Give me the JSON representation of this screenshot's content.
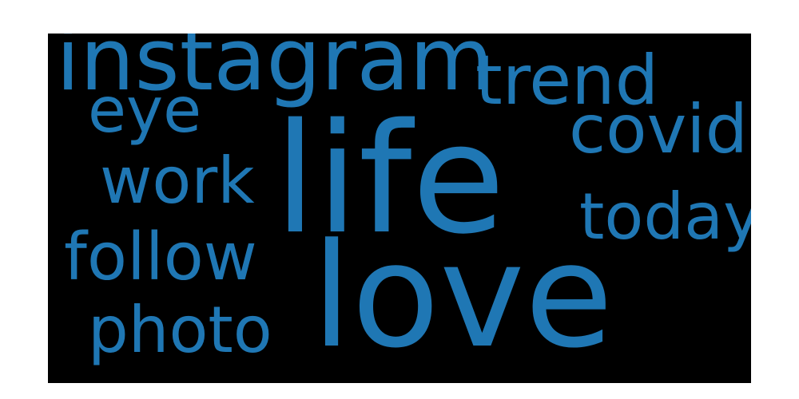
{
  "wordcloud": {
    "background_color": "#000000",
    "text_color": "#1f77b4",
    "words": {
      "life": "life",
      "love": "love",
      "instagram": "instagram",
      "trend": "trend",
      "covid": "covid",
      "today": "today",
      "eye": "eye",
      "work": "work",
      "follow": "follow",
      "photo": "photo"
    }
  }
}
